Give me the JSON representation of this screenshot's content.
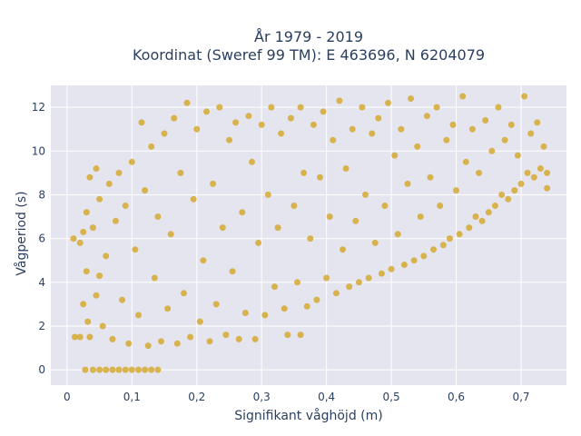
{
  "chart_data": {
    "type": "scatter",
    "title_lines": [
      "År 1979 - 2019",
      "Koordinat (Sweref 99 TM): E 463696, N 6204079"
    ],
    "xlabel": "Signifikant våghöjd (m)",
    "ylabel": "Vågperiod (s)",
    "xlim": [
      -0.025,
      0.77
    ],
    "ylim": [
      -0.7,
      13
    ],
    "x_ticks": [
      0,
      0.1,
      0.2,
      0.3,
      0.4,
      0.5,
      0.6,
      0.7
    ],
    "x_tick_labels": [
      "0",
      "0,1",
      "0,2",
      "0,3",
      "0,4",
      "0,5",
      "0,6",
      "0,7"
    ],
    "y_ticks": [
      0,
      2,
      4,
      6,
      8,
      10,
      12
    ],
    "y_tick_labels": [
      "0",
      "2",
      "4",
      "6",
      "8",
      "10",
      "12"
    ],
    "grid": true,
    "colors": {
      "marker": "#d4a523",
      "plot_bg": "#e5e5f0",
      "grid": "#ffffff",
      "text": "#2a3f5f"
    },
    "series": [
      {
        "points": [
          [
            0.01,
            6.0
          ],
          [
            0.012,
            1.5
          ],
          [
            0.02,
            1.5
          ],
          [
            0.02,
            5.8
          ],
          [
            0.025,
            6.3
          ],
          [
            0.025,
            3.0
          ],
          [
            0.028,
            0.0
          ],
          [
            0.03,
            4.5
          ],
          [
            0.03,
            7.2
          ],
          [
            0.032,
            2.2
          ],
          [
            0.035,
            8.8
          ],
          [
            0.035,
            1.5
          ],
          [
            0.04,
            0.0
          ],
          [
            0.04,
            6.5
          ],
          [
            0.045,
            9.2
          ],
          [
            0.045,
            3.4
          ],
          [
            0.05,
            0.0
          ],
          [
            0.05,
            7.8
          ],
          [
            0.055,
            2.0
          ],
          [
            0.06,
            0.0
          ],
          [
            0.06,
            5.2
          ],
          [
            0.065,
            8.5
          ],
          [
            0.07,
            0.0
          ],
          [
            0.07,
            1.4
          ],
          [
            0.075,
            6.8
          ],
          [
            0.08,
            0.0
          ],
          [
            0.08,
            9.0
          ],
          [
            0.085,
            3.2
          ],
          [
            0.09,
            0.0
          ],
          [
            0.09,
            7.5
          ],
          [
            0.095,
            1.2
          ],
          [
            0.1,
            0.0
          ],
          [
            0.1,
            9.5
          ],
          [
            0.105,
            5.5
          ],
          [
            0.11,
            0.0
          ],
          [
            0.11,
            2.5
          ],
          [
            0.115,
            11.3
          ],
          [
            0.12,
            0.0
          ],
          [
            0.12,
            8.2
          ],
          [
            0.125,
            1.1
          ],
          [
            0.13,
            0.0
          ],
          [
            0.13,
            10.2
          ],
          [
            0.135,
            4.2
          ],
          [
            0.14,
            0.0
          ],
          [
            0.14,
            7.0
          ],
          [
            0.145,
            1.3
          ],
          [
            0.15,
            10.8
          ],
          [
            0.155,
            2.8
          ],
          [
            0.16,
            6.2
          ],
          [
            0.165,
            11.5
          ],
          [
            0.17,
            1.2
          ],
          [
            0.175,
            9.0
          ],
          [
            0.18,
            3.5
          ],
          [
            0.185,
            12.2
          ],
          [
            0.19,
            1.5
          ],
          [
            0.195,
            7.8
          ],
          [
            0.2,
            11.0
          ],
          [
            0.205,
            2.2
          ],
          [
            0.21,
            5.0
          ],
          [
            0.215,
            11.8
          ],
          [
            0.22,
            1.3
          ],
          [
            0.225,
            8.5
          ],
          [
            0.23,
            3.0
          ],
          [
            0.235,
            12.0
          ],
          [
            0.24,
            6.5
          ],
          [
            0.245,
            1.6
          ],
          [
            0.25,
            10.5
          ],
          [
            0.255,
            4.5
          ],
          [
            0.26,
            11.3
          ],
          [
            0.265,
            1.4
          ],
          [
            0.27,
            7.2
          ],
          [
            0.275,
            2.6
          ],
          [
            0.28,
            11.6
          ],
          [
            0.285,
            9.5
          ],
          [
            0.29,
            1.4
          ],
          [
            0.295,
            5.8
          ],
          [
            0.3,
            11.2
          ],
          [
            0.305,
            2.5
          ],
          [
            0.31,
            8.0
          ],
          [
            0.315,
            12.0
          ],
          [
            0.32,
            3.8
          ],
          [
            0.325,
            6.5
          ],
          [
            0.33,
            10.8
          ],
          [
            0.335,
            2.8
          ],
          [
            0.34,
            1.6
          ],
          [
            0.345,
            11.5
          ],
          [
            0.35,
            7.5
          ],
          [
            0.355,
            4.0
          ],
          [
            0.36,
            12.0
          ],
          [
            0.365,
            9.0
          ],
          [
            0.37,
            2.9
          ],
          [
            0.375,
            6.0
          ],
          [
            0.38,
            11.2
          ],
          [
            0.385,
            3.2
          ],
          [
            0.39,
            8.8
          ],
          [
            0.395,
            11.8
          ],
          [
            0.4,
            4.2
          ],
          [
            0.405,
            7.0
          ],
          [
            0.41,
            10.5
          ],
          [
            0.415,
            3.5
          ],
          [
            0.42,
            12.3
          ],
          [
            0.425,
            5.5
          ],
          [
            0.43,
            9.2
          ],
          [
            0.435,
            3.8
          ],
          [
            0.44,
            11.0
          ],
          [
            0.445,
            6.8
          ],
          [
            0.45,
            4.0
          ],
          [
            0.455,
            12.0
          ],
          [
            0.46,
            8.0
          ],
          [
            0.465,
            4.2
          ],
          [
            0.47,
            10.8
          ],
          [
            0.475,
            5.8
          ],
          [
            0.48,
            11.5
          ],
          [
            0.485,
            4.4
          ],
          [
            0.49,
            7.5
          ],
          [
            0.495,
            12.2
          ],
          [
            0.5,
            4.6
          ],
          [
            0.505,
            9.8
          ],
          [
            0.51,
            6.2
          ],
          [
            0.515,
            11.0
          ],
          [
            0.52,
            4.8
          ],
          [
            0.525,
            8.5
          ],
          [
            0.53,
            12.4
          ],
          [
            0.535,
            5.0
          ],
          [
            0.54,
            10.2
          ],
          [
            0.545,
            7.0
          ],
          [
            0.55,
            5.2
          ],
          [
            0.555,
            11.6
          ],
          [
            0.56,
            8.8
          ],
          [
            0.565,
            5.5
          ],
          [
            0.57,
            12.0
          ],
          [
            0.575,
            7.5
          ],
          [
            0.58,
            5.7
          ],
          [
            0.585,
            10.5
          ],
          [
            0.59,
            6.0
          ],
          [
            0.595,
            11.2
          ],
          [
            0.6,
            8.2
          ],
          [
            0.605,
            6.2
          ],
          [
            0.61,
            12.5
          ],
          [
            0.615,
            9.5
          ],
          [
            0.62,
            6.5
          ],
          [
            0.625,
            11.0
          ],
          [
            0.63,
            7.0
          ],
          [
            0.635,
            9.0
          ],
          [
            0.64,
            6.8
          ],
          [
            0.645,
            11.4
          ],
          [
            0.65,
            7.2
          ],
          [
            0.655,
            10.0
          ],
          [
            0.66,
            7.5
          ],
          [
            0.665,
            12.0
          ],
          [
            0.67,
            8.0
          ],
          [
            0.675,
            10.5
          ],
          [
            0.68,
            7.8
          ],
          [
            0.685,
            11.2
          ],
          [
            0.69,
            8.2
          ],
          [
            0.695,
            9.8
          ],
          [
            0.7,
            8.5
          ],
          [
            0.705,
            12.5
          ],
          [
            0.71,
            9.0
          ],
          [
            0.715,
            10.8
          ],
          [
            0.72,
            8.8
          ],
          [
            0.725,
            11.3
          ],
          [
            0.73,
            9.2
          ],
          [
            0.735,
            10.2
          ],
          [
            0.74,
            9.0
          ],
          [
            0.74,
            8.3
          ],
          [
            0.36,
            1.6
          ],
          [
            0.05,
            4.3
          ]
        ]
      }
    ]
  }
}
